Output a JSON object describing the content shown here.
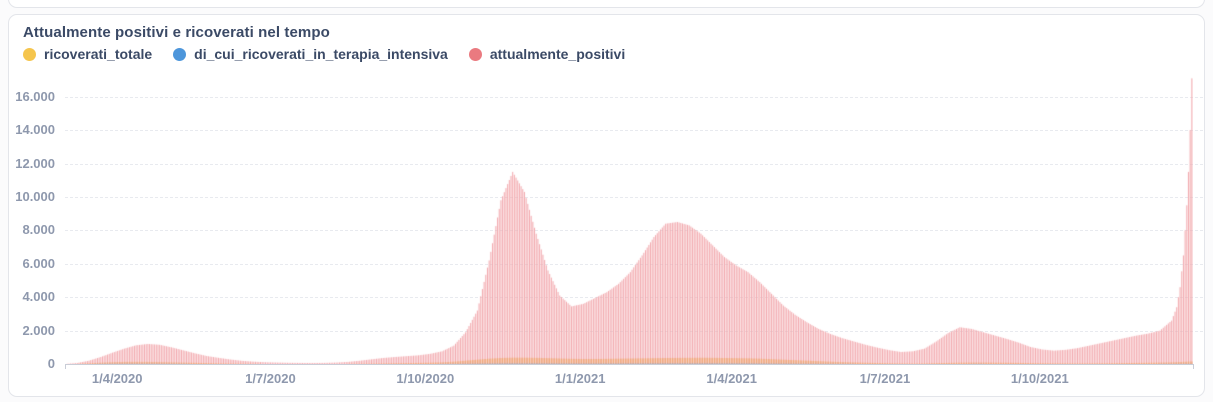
{
  "card": {
    "title": "Attualmente positivi e ricoverati nel tempo"
  },
  "legend": [
    {
      "label": "ricoverati_totale",
      "color": "#F5C54D"
    },
    {
      "label": "di_cui_ricoverati_in_terapia_intensiva",
      "color": "#4D96DB"
    },
    {
      "label": "attualmente_positivi",
      "color": "#EA7A80"
    }
  ],
  "chart_data": {
    "type": "bar",
    "title": "Attualmente positivi e ricoverati nel tempo",
    "xlabel": "",
    "ylabel": "",
    "ylim": [
      0,
      16000
    ],
    "ymax_render": 17600,
    "grid": "horizontal-dashed",
    "legend_position": "top-left",
    "y_ticks": [
      {
        "value": 0,
        "label": "0"
      },
      {
        "value": 2000,
        "label": "2.000"
      },
      {
        "value": 4000,
        "label": "4.000"
      },
      {
        "value": 6000,
        "label": "6.000"
      },
      {
        "value": 8000,
        "label": "8.000"
      },
      {
        "value": 10000,
        "label": "10.000"
      },
      {
        "value": 12000,
        "label": "12.000"
      },
      {
        "value": 14000,
        "label": "14.000"
      },
      {
        "value": 16000,
        "label": "16.000"
      }
    ],
    "x_start": "2020-03-01",
    "x_end": "2021-12-31",
    "x_ticks": [
      {
        "date": "2020-04-01",
        "label": "1/4/2020"
      },
      {
        "date": "2020-07-01",
        "label": "1/7/2020"
      },
      {
        "date": "2020-10-01",
        "label": "1/10/2020"
      },
      {
        "date": "2021-01-01",
        "label": "1/1/2021"
      },
      {
        "date": "2021-04-01",
        "label": "1/4/2021"
      },
      {
        "date": "2021-07-01",
        "label": "1/7/2021"
      },
      {
        "date": "2021-10-01",
        "label": "1/10/2021"
      }
    ],
    "sampling": "weekly anchor values estimated from the rendered bars; daily bars interpolated",
    "dates": [
      "2020-03-01",
      "2020-03-08",
      "2020-03-15",
      "2020-03-22",
      "2020-03-29",
      "2020-04-05",
      "2020-04-12",
      "2020-04-19",
      "2020-04-26",
      "2020-05-03",
      "2020-05-10",
      "2020-05-17",
      "2020-05-24",
      "2020-05-31",
      "2020-06-07",
      "2020-06-14",
      "2020-06-21",
      "2020-06-28",
      "2020-07-05",
      "2020-07-12",
      "2020-07-19",
      "2020-07-26",
      "2020-08-02",
      "2020-08-09",
      "2020-08-16",
      "2020-08-23",
      "2020-08-30",
      "2020-09-06",
      "2020-09-13",
      "2020-09-20",
      "2020-09-27",
      "2020-10-04",
      "2020-10-11",
      "2020-10-18",
      "2020-10-25",
      "2020-11-01",
      "2020-11-08",
      "2020-11-15",
      "2020-11-22",
      "2020-11-29",
      "2020-12-06",
      "2020-12-13",
      "2020-12-20",
      "2020-12-27",
      "2021-01-03",
      "2021-01-10",
      "2021-01-17",
      "2021-01-24",
      "2021-01-31",
      "2021-02-07",
      "2021-02-14",
      "2021-02-21",
      "2021-02-28",
      "2021-03-07",
      "2021-03-14",
      "2021-03-21",
      "2021-03-28",
      "2021-04-04",
      "2021-04-11",
      "2021-04-18",
      "2021-04-25",
      "2021-05-02",
      "2021-05-09",
      "2021-05-16",
      "2021-05-23",
      "2021-05-30",
      "2021-06-06",
      "2021-06-13",
      "2021-06-20",
      "2021-06-27",
      "2021-07-04",
      "2021-07-11",
      "2021-07-18",
      "2021-07-25",
      "2021-08-01",
      "2021-08-08",
      "2021-08-15",
      "2021-08-22",
      "2021-08-29",
      "2021-09-05",
      "2021-09-12",
      "2021-09-19",
      "2021-09-26",
      "2021-10-03",
      "2021-10-10",
      "2021-10-17",
      "2021-10-24",
      "2021-10-31",
      "2021-11-07",
      "2021-11-14",
      "2021-11-21",
      "2021-11-28",
      "2021-12-05",
      "2021-12-12",
      "2021-12-19",
      "2021-12-22",
      "2021-12-24",
      "2021-12-26",
      "2021-12-28",
      "2021-12-29",
      "2021-12-30",
      "2021-12-31"
    ],
    "series": [
      {
        "name": "attualmente_positivi",
        "legend_color": "#EA7A80",
        "bar_color": "#F2A9AE",
        "values": [
          10,
          60,
          200,
          420,
          680,
          920,
          1120,
          1200,
          1150,
          1000,
          820,
          640,
          480,
          370,
          270,
          190,
          140,
          105,
          85,
          70,
          62,
          58,
          65,
          85,
          125,
          195,
          280,
          360,
          420,
          470,
          520,
          610,
          760,
          1100,
          1900,
          3200,
          6200,
          9800,
          11500,
          10300,
          7800,
          5600,
          4100,
          3450,
          3600,
          3950,
          4300,
          4800,
          5500,
          6500,
          7600,
          8400,
          8500,
          8300,
          7800,
          7100,
          6400,
          5900,
          5500,
          4900,
          4200,
          3500,
          2950,
          2500,
          2100,
          1800,
          1550,
          1350,
          1150,
          980,
          830,
          720,
          760,
          920,
          1350,
          1850,
          2200,
          2100,
          1900,
          1700,
          1500,
          1280,
          1020,
          870,
          800,
          850,
          950,
          1100,
          1250,
          1400,
          1550,
          1700,
          1820,
          2000,
          2600,
          3400,
          4600,
          6500,
          9500,
          11500,
          14000,
          17100
        ]
      },
      {
        "name": "ricoverati_totale",
        "legend_color": "#F5C54D",
        "bar_color": "#EFA876",
        "values": [
          2,
          10,
          40,
          80,
          110,
          125,
          130,
          125,
          115,
          100,
          85,
          70,
          55,
          40,
          30,
          22,
          15,
          10,
          8,
          6,
          5,
          5,
          6,
          8,
          12,
          18,
          25,
          35,
          45,
          55,
          65,
          80,
          100,
          140,
          200,
          260,
          320,
          360,
          380,
          380,
          370,
          350,
          330,
          310,
          300,
          300,
          310,
          320,
          330,
          340,
          350,
          360,
          365,
          370,
          375,
          370,
          360,
          350,
          340,
          320,
          290,
          260,
          230,
          200,
          170,
          140,
          115,
          95,
          75,
          60,
          45,
          35,
          30,
          35,
          50,
          65,
          80,
          85,
          85,
          80,
          75,
          65,
          55,
          45,
          40,
          38,
          36,
          38,
          42,
          48,
          55,
          65,
          75,
          85,
          100,
          110,
          120,
          130,
          140,
          145,
          150,
          155
        ]
      },
      {
        "name": "di_cui_ricoverati_in_terapia_intensiva",
        "legend_color": "#4D96DB",
        "bar_color": "#A3A8BD",
        "values": [
          0,
          2,
          8,
          15,
          22,
          25,
          26,
          24,
          21,
          18,
          14,
          10,
          7,
          5,
          4,
          3,
          2,
          2,
          1,
          1,
          1,
          1,
          1,
          1,
          2,
          3,
          4,
          5,
          6,
          7,
          8,
          10,
          13,
          18,
          25,
          32,
          40,
          46,
          50,
          50,
          48,
          45,
          42,
          40,
          38,
          38,
          40,
          42,
          44,
          46,
          48,
          50,
          50,
          50,
          52,
          52,
          50,
          48,
          45,
          42,
          38,
          34,
          30,
          26,
          22,
          18,
          15,
          12,
          10,
          8,
          6,
          5,
          4,
          5,
          7,
          9,
          11,
          12,
          12,
          11,
          10,
          9,
          8,
          7,
          6,
          6,
          6,
          6,
          7,
          8,
          9,
          10,
          11,
          12,
          13,
          14,
          15,
          16,
          17,
          18,
          19,
          20
        ]
      }
    ]
  }
}
